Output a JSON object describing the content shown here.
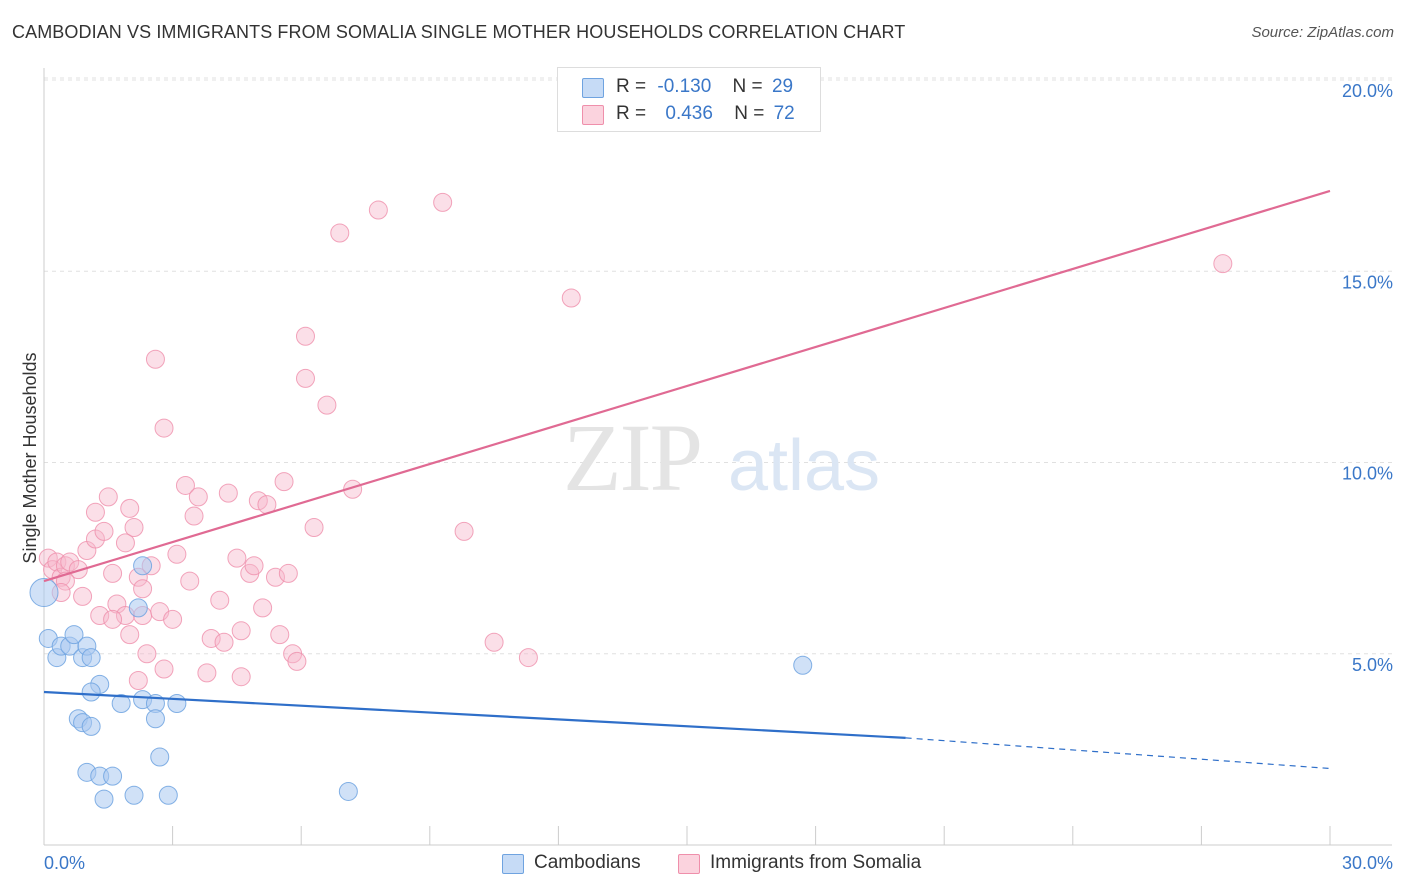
{
  "title": "CAMBODIAN VS IMMIGRANTS FROM SOMALIA SINGLE MOTHER HOUSEHOLDS CORRELATION CHART",
  "source": "Source: ZipAtlas.com",
  "watermark": {
    "zip": "ZIP",
    "atlas": "atlas"
  },
  "legend": {
    "rows": [
      {
        "r_label": "R =",
        "r_value": "-0.130",
        "n_label": "N =",
        "n_value": "29",
        "color": "#a9c8f0"
      },
      {
        "r_label": "R =",
        "r_value": "0.436",
        "n_label": "N =",
        "n_value": "72",
        "color": "#f7b8cb"
      }
    ]
  },
  "bottom_legend": [
    {
      "label": "Cambodians",
      "color": "#a9c8f0"
    },
    {
      "label": "Immigrants from Somalia",
      "color": "#f7b8cb"
    }
  ],
  "chart_data": {
    "type": "scatter",
    "title": "CAMBODIAN VS IMMIGRANTS FROM SOMALIA SINGLE MOTHER HOUSEHOLDS CORRELATION CHART",
    "xlabel": "",
    "ylabel": "Single Mother Households",
    "xlim": [
      0,
      30
    ],
    "ylim": [
      0,
      20
    ],
    "x_tick_labels": [
      "0.0%",
      "30.0%"
    ],
    "y_tick_labels": [
      "5.0%",
      "10.0%",
      "15.0%",
      "20.0%"
    ],
    "y_ticks": [
      5,
      10,
      15,
      20
    ],
    "grid": true,
    "legend_position": "top-center",
    "series": [
      {
        "name": "Cambodians",
        "color": "#6fa3e0",
        "fill": "#a9c8f0",
        "trend": {
          "x": [
            0,
            20.1
          ],
          "y": [
            4.0,
            2.8
          ],
          "dashed_to": [
            30,
            2.0
          ],
          "color": "#2f6fc9"
        },
        "points": [
          {
            "x": 0.0,
            "y": 6.6,
            "big": true
          },
          {
            "x": 0.1,
            "y": 5.4
          },
          {
            "x": 0.3,
            "y": 4.9
          },
          {
            "x": 0.4,
            "y": 5.2
          },
          {
            "x": 0.6,
            "y": 5.2
          },
          {
            "x": 0.7,
            "y": 5.5
          },
          {
            "x": 0.9,
            "y": 4.9
          },
          {
            "x": 0.8,
            "y": 3.3
          },
          {
            "x": 1.0,
            "y": 5.2
          },
          {
            "x": 0.9,
            "y": 3.2
          },
          {
            "x": 1.1,
            "y": 4.9
          },
          {
            "x": 1.0,
            "y": 1.9
          },
          {
            "x": 1.3,
            "y": 4.2
          },
          {
            "x": 1.1,
            "y": 3.1
          },
          {
            "x": 1.1,
            "y": 4.0
          },
          {
            "x": 1.3,
            "y": 1.8
          },
          {
            "x": 1.4,
            "y": 1.2
          },
          {
            "x": 1.6,
            "y": 1.8
          },
          {
            "x": 1.8,
            "y": 3.7
          },
          {
            "x": 2.1,
            "y": 1.3
          },
          {
            "x": 2.2,
            "y": 6.2
          },
          {
            "x": 2.3,
            "y": 7.3
          },
          {
            "x": 2.3,
            "y": 3.8
          },
          {
            "x": 2.6,
            "y": 3.7
          },
          {
            "x": 2.6,
            "y": 3.3
          },
          {
            "x": 2.7,
            "y": 2.3
          },
          {
            "x": 2.9,
            "y": 1.3
          },
          {
            "x": 3.1,
            "y": 3.7
          },
          {
            "x": 7.1,
            "y": 1.4
          },
          {
            "x": 17.7,
            "y": 4.7
          }
        ]
      },
      {
        "name": "Immigrants from Somalia",
        "color": "#ef8fab",
        "fill": "#f7b8cb",
        "trend": {
          "x": [
            0,
            30
          ],
          "y": [
            6.9,
            17.1
          ],
          "color": "#e06a93"
        },
        "points": [
          {
            "x": 0.1,
            "y": 7.5
          },
          {
            "x": 0.2,
            "y": 7.2
          },
          {
            "x": 0.3,
            "y": 7.4
          },
          {
            "x": 0.4,
            "y": 7.0
          },
          {
            "x": 0.5,
            "y": 7.3
          },
          {
            "x": 0.6,
            "y": 7.4
          },
          {
            "x": 0.8,
            "y": 7.2
          },
          {
            "x": 1.0,
            "y": 7.7
          },
          {
            "x": 1.2,
            "y": 8.0
          },
          {
            "x": 1.2,
            "y": 8.7
          },
          {
            "x": 1.4,
            "y": 8.2
          },
          {
            "x": 1.5,
            "y": 9.1
          },
          {
            "x": 1.6,
            "y": 7.1
          },
          {
            "x": 1.7,
            "y": 6.3
          },
          {
            "x": 1.9,
            "y": 6.0
          },
          {
            "x": 1.9,
            "y": 7.9
          },
          {
            "x": 2.0,
            "y": 8.8
          },
          {
            "x": 2.1,
            "y": 8.3
          },
          {
            "x": 2.0,
            "y": 5.5
          },
          {
            "x": 2.2,
            "y": 7.0
          },
          {
            "x": 2.3,
            "y": 6.0
          },
          {
            "x": 2.2,
            "y": 4.3
          },
          {
            "x": 2.4,
            "y": 5.0
          },
          {
            "x": 2.5,
            "y": 7.3
          },
          {
            "x": 2.7,
            "y": 6.1
          },
          {
            "x": 2.8,
            "y": 4.6
          },
          {
            "x": 2.6,
            "y": 12.7
          },
          {
            "x": 2.8,
            "y": 10.9
          },
          {
            "x": 3.0,
            "y": 5.9
          },
          {
            "x": 3.1,
            "y": 7.6
          },
          {
            "x": 3.3,
            "y": 9.4
          },
          {
            "x": 3.5,
            "y": 8.6
          },
          {
            "x": 3.6,
            "y": 9.1
          },
          {
            "x": 3.8,
            "y": 4.5
          },
          {
            "x": 3.9,
            "y": 5.4
          },
          {
            "x": 4.1,
            "y": 6.4
          },
          {
            "x": 4.2,
            "y": 5.3
          },
          {
            "x": 4.3,
            "y": 9.2
          },
          {
            "x": 4.5,
            "y": 7.5
          },
          {
            "x": 4.6,
            "y": 5.6
          },
          {
            "x": 4.6,
            "y": 4.4
          },
          {
            "x": 4.8,
            "y": 7.1
          },
          {
            "x": 4.9,
            "y": 7.3
          },
          {
            "x": 5.0,
            "y": 9.0
          },
          {
            "x": 5.1,
            "y": 6.2
          },
          {
            "x": 5.2,
            "y": 8.9
          },
          {
            "x": 5.4,
            "y": 7.0
          },
          {
            "x": 5.5,
            "y": 5.5
          },
          {
            "x": 5.6,
            "y": 9.5
          },
          {
            "x": 5.7,
            "y": 7.1
          },
          {
            "x": 5.8,
            "y": 5.0
          },
          {
            "x": 5.9,
            "y": 4.8
          },
          {
            "x": 6.1,
            "y": 13.3
          },
          {
            "x": 6.1,
            "y": 12.2
          },
          {
            "x": 6.3,
            "y": 8.3
          },
          {
            "x": 6.6,
            "y": 11.5
          },
          {
            "x": 6.9,
            "y": 16.0
          },
          {
            "x": 7.2,
            "y": 9.3
          },
          {
            "x": 7.8,
            "y": 16.6
          },
          {
            "x": 9.3,
            "y": 16.8
          },
          {
            "x": 9.8,
            "y": 8.2
          },
          {
            "x": 10.5,
            "y": 5.3
          },
          {
            "x": 11.3,
            "y": 4.9
          },
          {
            "x": 12.3,
            "y": 14.3
          },
          {
            "x": 27.5,
            "y": 15.2
          },
          {
            "x": 1.3,
            "y": 6.0
          },
          {
            "x": 1.6,
            "y": 5.9
          },
          {
            "x": 0.5,
            "y": 6.9
          },
          {
            "x": 0.9,
            "y": 6.5
          },
          {
            "x": 0.4,
            "y": 6.6
          },
          {
            "x": 3.4,
            "y": 6.9
          },
          {
            "x": 2.3,
            "y": 6.7
          }
        ]
      }
    ]
  }
}
